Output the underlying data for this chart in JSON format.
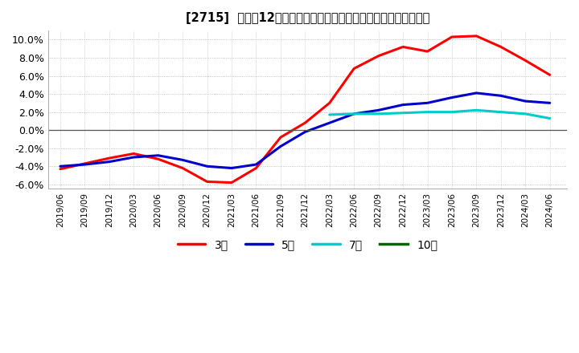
{
  "title": "[2715]  売上高12か月移動合計の対前年同期増減率の平均値の推移",
  "ylim": [
    -0.065,
    0.11
  ],
  "yticks": [
    -0.06,
    -0.04,
    -0.02,
    0.0,
    0.02,
    0.04,
    0.06,
    0.08,
    0.1
  ],
  "ytick_labels": [
    "-6.0%",
    "-4.0%",
    "-2.0%",
    "0.0%",
    "2.0%",
    "4.0%",
    "6.0%",
    "8.0%",
    "10.0%"
  ],
  "background_color": "#ffffff",
  "legend": [
    "3年",
    "5年",
    "7年",
    "10年"
  ],
  "legend_colors": [
    "#ff0000",
    "#0000cc",
    "#00cccc",
    "#006600"
  ],
  "x_labels": [
    "2019/06",
    "2019/09",
    "2019/12",
    "2020/03",
    "2020/06",
    "2020/09",
    "2020/12",
    "2021/03",
    "2021/06",
    "2021/09",
    "2021/12",
    "2022/03",
    "2022/06",
    "2022/09",
    "2022/12",
    "2023/03",
    "2023/06",
    "2023/09",
    "2023/12",
    "2024/03",
    "2024/06"
  ],
  "series_3y": [
    -0.043,
    -0.037,
    -0.031,
    -0.026,
    -0.032,
    -0.042,
    -0.057,
    -0.058,
    -0.042,
    -0.008,
    0.008,
    0.03,
    0.068,
    0.082,
    0.092,
    0.087,
    0.103,
    0.104,
    0.092,
    0.077,
    0.061
  ],
  "series_5y": [
    -0.04,
    -0.038,
    -0.035,
    -0.03,
    -0.028,
    -0.033,
    -0.04,
    -0.042,
    -0.038,
    -0.018,
    -0.002,
    0.008,
    0.018,
    0.022,
    0.028,
    0.03,
    0.036,
    0.041,
    0.038,
    0.032,
    0.03
  ],
  "series_7y": [
    null,
    null,
    null,
    null,
    null,
    null,
    null,
    null,
    null,
    null,
    null,
    0.017,
    0.018,
    0.018,
    0.019,
    0.02,
    0.02,
    0.022,
    0.02,
    0.018,
    0.013
  ],
  "series_10y": [
    null,
    null,
    null,
    null,
    null,
    null,
    null,
    null,
    null,
    null,
    null,
    null,
    null,
    null,
    null,
    null,
    null,
    null,
    null,
    null,
    null
  ]
}
